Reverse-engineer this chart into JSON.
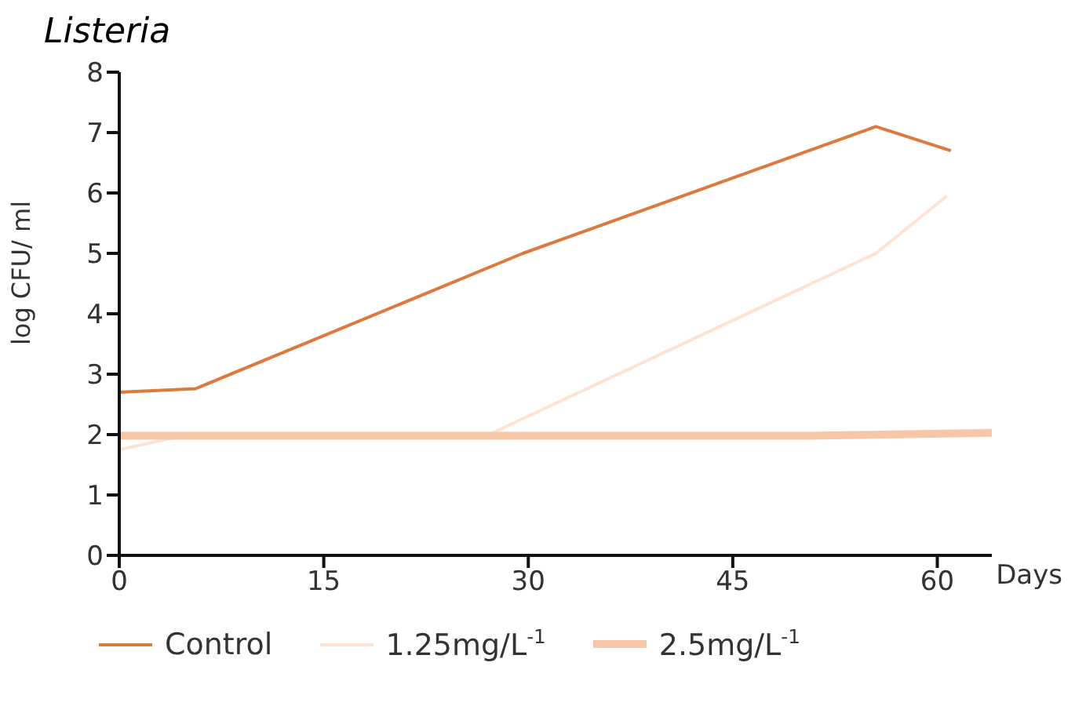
{
  "chart_data": {
    "type": "line",
    "title": "Listeria",
    "xlabel": "Days",
    "ylabel": "log CFU/ ml",
    "xlim": [
      0,
      64
    ],
    "xticks": [
      0,
      15,
      30,
      45,
      60
    ],
    "ylim": [
      0,
      8
    ],
    "yticks": [
      0,
      1,
      2,
      3,
      4,
      5,
      6,
      7,
      8
    ],
    "legend": "bottom",
    "marker": "none",
    "series": [
      {
        "name": "Control",
        "color": "#dc7a3e",
        "x": [
          0,
          5.6,
          29.6,
          55.5,
          61
        ],
        "values": [
          2.7,
          2.76,
          5.0,
          7.1,
          6.7
        ]
      },
      {
        "name": "1.25mg/L$^{-1}$",
        "color": "#fde3d3",
        "x": [
          0,
          5.4,
          27.3,
          55.5,
          60.7
        ],
        "values": [
          1.75,
          2.02,
          2.02,
          5.0,
          5.95
        ]
      },
      {
        "name": "2.5mg/L$^{-1}$",
        "color": "#f6c7a6",
        "x": [
          0,
          50.7,
          64
        ],
        "values": [
          1.98,
          1.98,
          2.03
        ]
      }
    ]
  }
}
